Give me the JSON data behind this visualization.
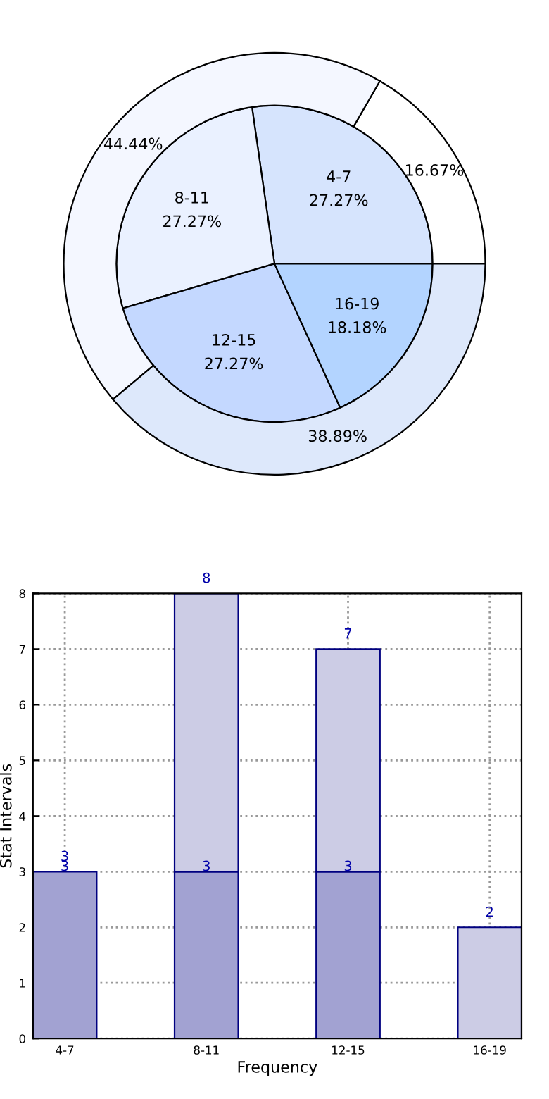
{
  "chart_data": [
    {
      "type": "pie",
      "categories": [
        "4-7",
        "8-11",
        "12-15",
        "16-19"
      ],
      "series": [
        {
          "values": [
            27.27,
            27.27,
            27.27,
            18.18
          ],
          "value_labels": [
            "27.27%",
            "27.27%",
            "27.27%",
            "18.18%"
          ],
          "colors": [
            "#d6e4fd",
            "#eaf1ff",
            "#c4d8ff",
            "#b3d4ff"
          ]
        },
        {
          "values": [
            16.67,
            44.44,
            38.89,
            null
          ],
          "value_labels": [
            "16.67%",
            "44.44%",
            "38.89%",
            null
          ],
          "colors": [
            "#ffffff",
            "#f4f7ff",
            "#dde8fb",
            null
          ]
        }
      ]
    },
    {
      "type": "bar",
      "categories": [
        "4-7",
        "8-11",
        "12-15",
        "16-19"
      ],
      "xlabel": "Frequency",
      "ylabel": "Stat Intervals",
      "ylim": [
        0,
        8
      ],
      "yticks": [
        0,
        1,
        2,
        3,
        4,
        5,
        6,
        7,
        8
      ],
      "grid": true,
      "stacked": true,
      "totals": [
        "3",
        "8",
        "7",
        "2"
      ],
      "series": [
        {
          "color": "#a2a2d2",
          "values": [
            3,
            3,
            3,
            null
          ],
          "value_labels": [
            "3",
            "3",
            "3",
            null
          ]
        },
        {
          "color": "#cccce5",
          "values": [
            null,
            5,
            4,
            2
          ]
        }
      ]
    }
  ]
}
